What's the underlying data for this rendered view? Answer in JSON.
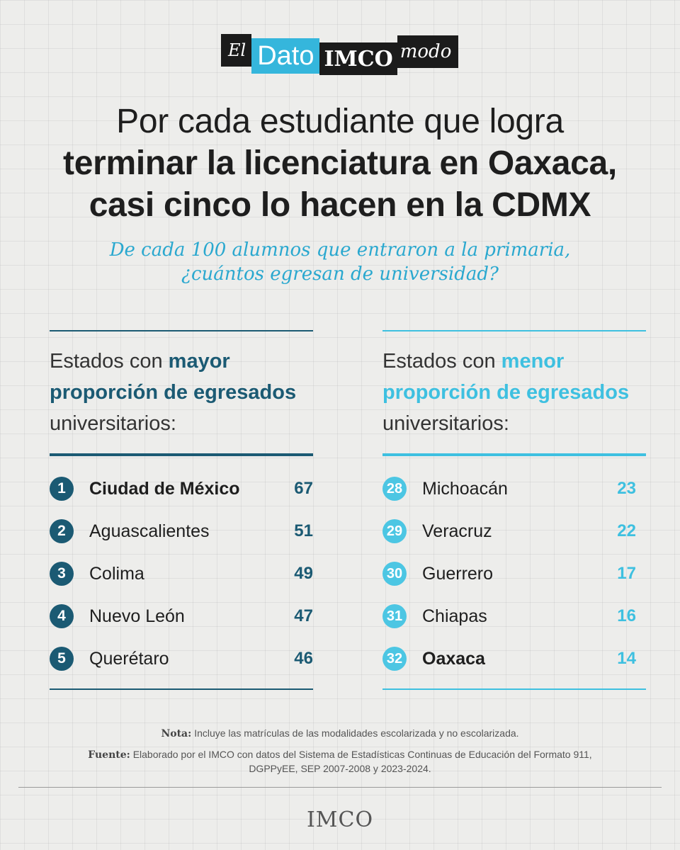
{
  "logo": {
    "el": "El",
    "dato": "Dato",
    "imco": "IMCO",
    "modo": "modo"
  },
  "title": {
    "line1": "Por cada estudiante que logra",
    "line2": "terminar la licenciatura en Oaxaca,",
    "line3": "casi cinco lo hacen en la CDMX"
  },
  "subtitle": {
    "line1": "De cada 100 alumnos que entraron a la primaria,",
    "line2": "¿cuántos egresan de universidad?"
  },
  "left": {
    "head_pre": "Estados con ",
    "head_accent1": "mayor",
    "head_accent2": "proporción de egresados",
    "head_post": "universitarios:",
    "items": [
      {
        "rank": "1",
        "name": "Ciudad de México",
        "value": "67"
      },
      {
        "rank": "2",
        "name": "Aguascalientes",
        "value": "51"
      },
      {
        "rank": "3",
        "name": "Colima",
        "value": "49"
      },
      {
        "rank": "4",
        "name": "Nuevo León",
        "value": "47"
      },
      {
        "rank": "5",
        "name": "Querétaro",
        "value": "46"
      }
    ]
  },
  "right": {
    "head_pre": "Estados con ",
    "head_accent1": "menor",
    "head_accent2": "proporción de egresados",
    "head_post": "universitarios:",
    "items": [
      {
        "rank": "28",
        "name": "Michoacán",
        "value": "23"
      },
      {
        "rank": "29",
        "name": "Veracruz",
        "value": "22"
      },
      {
        "rank": "30",
        "name": "Guerrero",
        "value": "17"
      },
      {
        "rank": "31",
        "name": "Chiapas",
        "value": "16"
      },
      {
        "rank": "32",
        "name": "Oaxaca",
        "value": "14"
      }
    ]
  },
  "notes": {
    "nota_label": "Nota:",
    "nota_text": "Incluye las matrículas de las modalidades escolarizada y no escolarizada.",
    "fuente_label": "Fuente:",
    "fuente_text": "Elaborado por el IMCO con datos del Sistema de Estadísticas Continuas de Educación del Formato 911, DGPPyEE, SEP 2007-2008 y 2023-2024."
  },
  "brand": "IMCO",
  "colors": {
    "dark_teal": "#1b5a73",
    "light_cyan": "#3ec0e0",
    "subtitle_blue": "#2aa8cf"
  }
}
